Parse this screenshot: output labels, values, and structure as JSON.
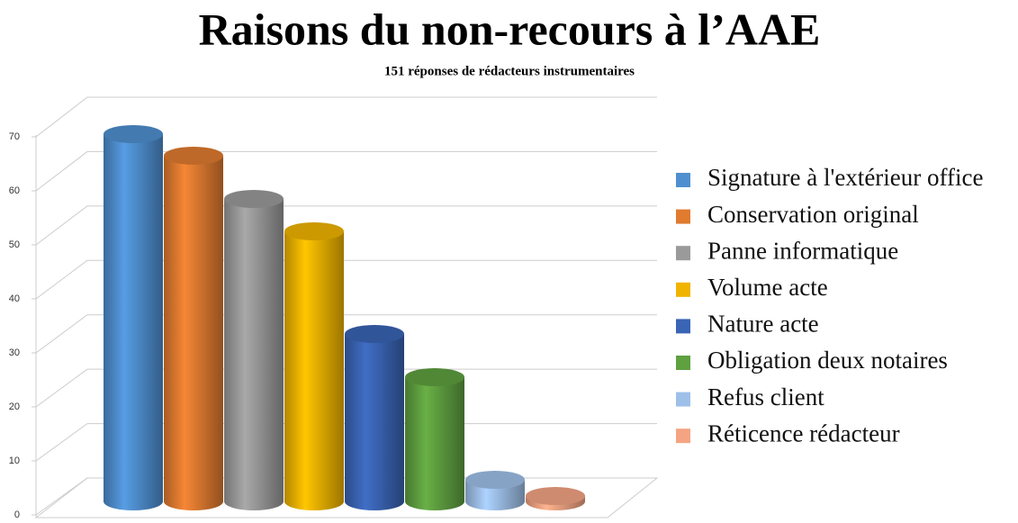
{
  "chart_data": {
    "type": "bar3d",
    "title": "Raisons du non-recours à l’AAE",
    "subtitle": "151 réponses de rédacteurs instrumentaires",
    "categories": [
      "Signature à l'extérieur office",
      "Conservation original",
      "Panne informatique",
      "Volume acte",
      "Nature acte",
      "Obligation deux notaires",
      "Refus client",
      "Réticence rédacteur"
    ],
    "values": [
      68,
      64,
      56,
      50,
      31,
      23,
      4,
      1
    ],
    "colors": [
      "#4f8fcf",
      "#e07b30",
      "#9a9a9a",
      "#f0b400",
      "#3a64b4",
      "#5fa040",
      "#9ec0e8",
      "#f4a482"
    ],
    "ylim": [
      0,
      70
    ],
    "yticks": [
      0,
      10,
      20,
      30,
      40,
      50,
      60,
      70
    ],
    "grid": true,
    "legend": "right"
  }
}
